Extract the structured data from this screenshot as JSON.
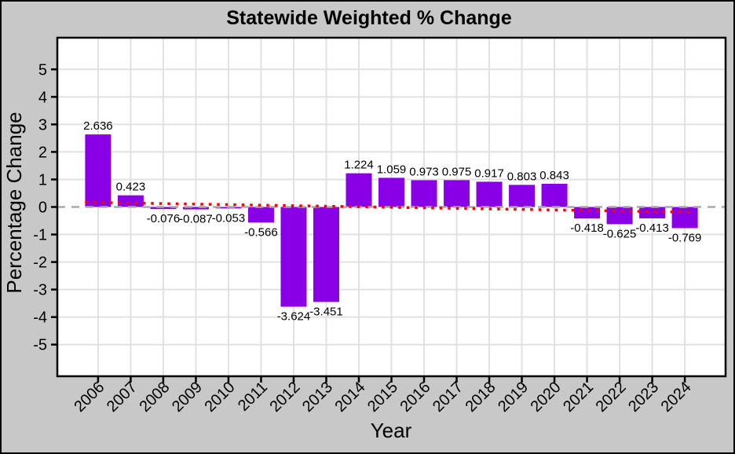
{
  "chart_data": {
    "type": "bar",
    "title": "Statewide Weighted % Change",
    "xlabel": "Year",
    "ylabel": "Percentage Change",
    "categories": [
      "2006",
      "2007",
      "2008",
      "2009",
      "2010",
      "2011",
      "2012",
      "2013",
      "2014",
      "2015",
      "2016",
      "2017",
      "2018",
      "2019",
      "2020",
      "2021",
      "2022",
      "2023",
      "2024"
    ],
    "values": [
      2.636,
      0.423,
      -0.076,
      -0.087,
      -0.053,
      -0.566,
      -3.624,
      -3.451,
      1.224,
      1.059,
      0.973,
      0.975,
      0.917,
      0.803,
      0.843,
      -0.418,
      -0.625,
      -0.413,
      -0.769
    ],
    "bar_labels": [
      "2.636",
      "0.423",
      "-0.076",
      "-0.087",
      "-0.053",
      "-0.566",
      "-3.624",
      "-3.451",
      "1.224",
      "1.059",
      "0.973",
      "0.975",
      "0.917",
      "0.803",
      "0.843",
      "-0.418",
      "-0.625",
      "-0.413",
      "-0.769"
    ],
    "yticks": [
      5,
      4,
      3,
      2,
      1,
      0,
      -1,
      -2,
      -3,
      -4,
      -5
    ],
    "ylim": [
      -6.15,
      6.15
    ],
    "grid": true,
    "legend": "none",
    "bar_color": "#8A00E6",
    "background_color": "#C8C8C8",
    "plot_background": "#FFFFFF",
    "gridline_color": "#E1E1E1",
    "frame_color": "#000000",
    "text_color": "#000000",
    "zero_line": {
      "value": 0,
      "style": "dashed",
      "color": "#A9A9A9"
    },
    "trend_line": {
      "style": "dotted",
      "color": "#FF0000",
      "start_year": 2005.6,
      "start_value": 0.17,
      "end_year": 2024.2,
      "end_value": -0.19
    }
  }
}
